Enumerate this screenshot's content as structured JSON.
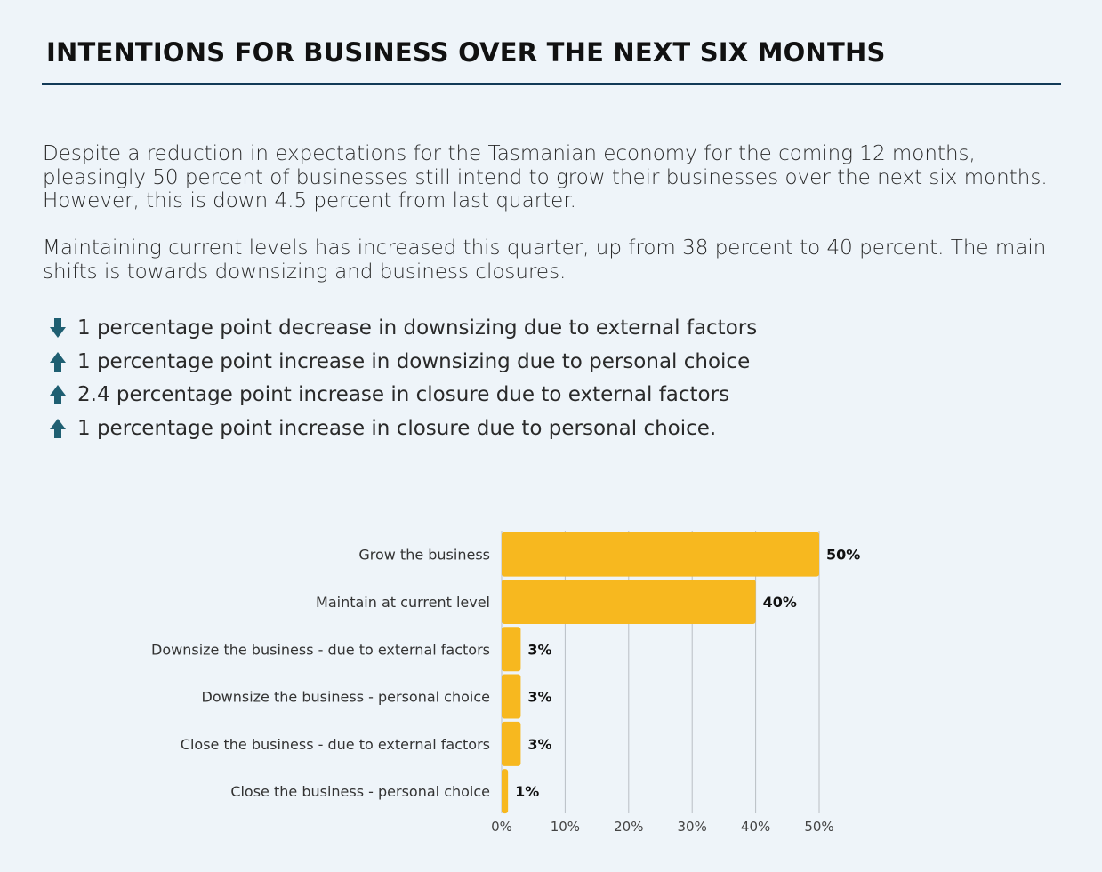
{
  "header": {
    "title": "INTENTIONS FOR BUSINESS OVER THE NEXT SIX MONTHS"
  },
  "body": {
    "paragraph_1": "Despite a reduction in expectations for the Tasmanian economy for the coming 12 months, pleasingly 50 percent of businesses still intend to grow their businesses over the next six months.  However, this is down 4.5 percent from last quarter.",
    "paragraph_2": "Maintaining current levels has increased this quarter, up from 38 percent to 40 percent. The main shifts is towards downsizing and business closures.",
    "bullets": [
      {
        "direction": "down",
        "icon": "arrow-down-icon",
        "text": "1 percentage point decrease in downsizing due to external factors"
      },
      {
        "direction": "up",
        "icon": "arrow-up-icon",
        "text": "1 percentage point increase in downsizing due to personal choice"
      },
      {
        "direction": "up",
        "icon": "arrow-up-icon",
        "text": "2.4 percentage point increase in closure due to external factors"
      },
      {
        "direction": "up",
        "icon": "arrow-up-icon",
        "text": "1 percentage point increase in closure due to personal choice."
      }
    ]
  },
  "colors": {
    "bar": "#f7b81f",
    "arrow": "#1f5f72",
    "rule": "#123a57",
    "grid": "#b9bec4"
  },
  "chart_data": {
    "type": "bar",
    "orientation": "horizontal",
    "categories": [
      "Grow the business",
      "Maintain at current level",
      "Downsize the business - due to external factors",
      "Downsize the business - personal choice",
      "Close the business - due to external factors",
      "Close the business - personal choice"
    ],
    "values": [
      50,
      40,
      3,
      3,
      3,
      1
    ],
    "value_labels": [
      "50%",
      "40%",
      "3%",
      "3%",
      "3%",
      "1%"
    ],
    "xticks": [
      "0%",
      "10%",
      "20%",
      "30%",
      "40%",
      "50%"
    ],
    "xlim": [
      0,
      50
    ],
    "grid": true,
    "legend": "none"
  }
}
